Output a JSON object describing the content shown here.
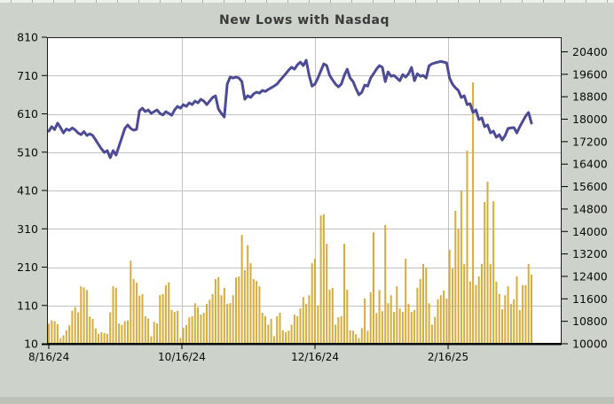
{
  "title": "New Lows with Nasdaq",
  "colors": {
    "background": "#cdd3ca",
    "plot_background": "#ffffff",
    "bar": "#d6ad3c",
    "line": "#4c4b94",
    "grid": "#c2c2c2",
    "border": "#1c1c1c",
    "title_text": "#3a3a3a",
    "tick_text": "#0a0a0a"
  },
  "chart_data": {
    "type": "bar",
    "subtype": "combo-bar-line",
    "title": "New Lows with Nasdaq",
    "xlabel": "",
    "ylabel_left": "",
    "ylabel_right": "",
    "grid": true,
    "legend": "none",
    "x_tick_labels": [
      "8/16/24",
      "10/16/24",
      "12/16/24",
      "2/16/25"
    ],
    "x_tick_positions": [
      0,
      45.5,
      91,
      136.5
    ],
    "left_axis": {
      "min": 10,
      "max": 810,
      "step": 100,
      "tick_labels": [
        "810",
        "710",
        "610",
        "510",
        "410",
        "310",
        "210",
        "110",
        "10"
      ]
    },
    "right_axis": {
      "min": 10000,
      "max": 20400,
      "step": 800,
      "tick_labels": [
        "20400",
        "19600",
        "18800",
        "18000",
        "17200",
        "16400",
        "15600",
        "14800",
        "14000",
        "13200",
        "12400",
        "11600",
        "10800",
        "10000"
      ]
    },
    "series": [
      {
        "name": "New Lows",
        "axis": "left",
        "style": "bar",
        "values": [
          62,
          71,
          69,
          61,
          25,
          32,
          45,
          58,
          96,
          106,
          92,
          160,
          157,
          150,
          81,
          75,
          50,
          36,
          40,
          38,
          36,
          92,
          160,
          156,
          63,
          59,
          69,
          71,
          227,
          179,
          169,
          136,
          140,
          82,
          76,
          30,
          67,
          63,
          137,
          140,
          163,
          170,
          98,
          93,
          96,
          25,
          52,
          59,
          79,
          82,
          116,
          105,
          86,
          91,
          114,
          125,
          140,
          179,
          184,
          137,
          156,
          114,
          116,
          137,
          183,
          186,
          294,
          202,
          267,
          220,
          179,
          174,
          160,
          91,
          82,
          60,
          75,
          30,
          82,
          91,
          45,
          40,
          44,
          60,
          86,
          82,
          102,
          132,
          114,
          137,
          220,
          232,
          110,
          345,
          348,
          271,
          151,
          156,
          60,
          79,
          82,
          271,
          151,
          45,
          44,
          35,
          25,
          51,
          128,
          44,
          144,
          301,
          90,
          150,
          95,
          320,
          116,
          137,
          93,
          160,
          102,
          93,
          232,
          114,
          93,
          98,
          156,
          179,
          218,
          209,
          116,
          60,
          80,
          126,
          137,
          149,
          128,
          255,
          206,
          357,
          310,
          410,
          218,
          514,
          172,
          692,
          163,
          186,
          218,
          380,
          433,
          218,
          382,
          172,
          140,
          100,
          137,
          160,
          114,
          126,
          186,
          98,
          163,
          163,
          218,
          190
        ]
      },
      {
        "name": "Nasdaq",
        "axis": "right",
        "style": "line",
        "values": [
          17574,
          17732,
          17630,
          17858,
          17700,
          17511,
          17650,
          17600,
          17690,
          17620,
          17510,
          17450,
          17560,
          17420,
          17480,
          17420,
          17260,
          17101,
          16943,
          16817,
          16880,
          16627,
          16880,
          16722,
          17038,
          17350,
          17669,
          17795,
          17669,
          17606,
          17640,
          18300,
          18394,
          18268,
          18330,
          18205,
          18268,
          18330,
          18205,
          18150,
          18268,
          18205,
          18140,
          18330,
          18457,
          18394,
          18520,
          18457,
          18583,
          18520,
          18646,
          18583,
          18710,
          18646,
          18520,
          18646,
          18773,
          18830,
          18360,
          18205,
          18080,
          19250,
          19499,
          19467,
          19499,
          19467,
          19341,
          18710,
          18836,
          18773,
          18900,
          18960,
          18930,
          19025,
          18990,
          19060,
          19120,
          19183,
          19250,
          19380,
          19500,
          19620,
          19750,
          19850,
          19780,
          19940,
          20035,
          19910,
          20099,
          19560,
          19180,
          19250,
          19467,
          19720,
          19970,
          19910,
          19560,
          19400,
          19250,
          19150,
          19250,
          19560,
          19780,
          19467,
          19341,
          19090,
          18868,
          18960,
          19215,
          19180,
          19467,
          19620,
          19783,
          19909,
          19850,
          19341,
          19688,
          19530,
          19560,
          19467,
          19370,
          19590,
          19500,
          19620,
          19846,
          19370,
          19620,
          19530,
          19560,
          19467,
          19909,
          19970,
          20004,
          20035,
          20056,
          20035,
          20004,
          19467,
          19246,
          19120,
          19025,
          18773,
          18836,
          18520,
          18552,
          18237,
          18331,
          17984,
          18047,
          17732,
          17795,
          17511,
          17574,
          17353,
          17448,
          17259,
          17417,
          17669,
          17690,
          17700,
          17511,
          17732,
          17921,
          18110,
          18237,
          17858
        ]
      }
    ]
  }
}
